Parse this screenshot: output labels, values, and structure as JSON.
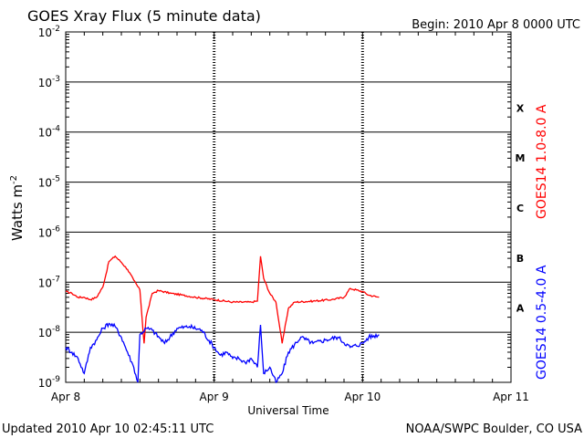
{
  "header": {
    "title": "GOES Xray Flux (5 minute data)",
    "begin_label": "Begin:  2010 Apr 8 0000 UTC"
  },
  "footer": {
    "updated": "Updated 2010 Apr 10 02:45:11 UTC",
    "credit": "NOAA/SWPC Boulder, CO USA"
  },
  "colors": {
    "long_channel": "#ff0000",
    "short_channel": "#0000ff",
    "axis": "#000000"
  },
  "chart_data": {
    "type": "line",
    "title": "GOES Xray Flux (5 minute data)",
    "xlabel": "Universal Time",
    "ylabel": "Watts m",
    "ylabel_superscript": "-2",
    "y_scale": "log",
    "ylim": [
      1e-09,
      0.01
    ],
    "xlim": [
      "2010-04-08 00:00",
      "2010-04-11 00:00"
    ],
    "x_ticks": [
      {
        "date": "2010-04-08",
        "label": "Apr 8"
      },
      {
        "date": "2010-04-09",
        "label": "Apr 9"
      },
      {
        "date": "2010-04-10",
        "label": "Apr 10"
      },
      {
        "date": "2010-04-11",
        "label": "Apr 11"
      }
    ],
    "y_ticks": [
      {
        "exp": -9,
        "base": "10",
        "sup": "-9"
      },
      {
        "exp": -8,
        "base": "10",
        "sup": "-8"
      },
      {
        "exp": -7,
        "base": "10",
        "sup": "-7"
      },
      {
        "exp": -6,
        "base": "10",
        "sup": "-6"
      },
      {
        "exp": -5,
        "base": "10",
        "sup": "-5"
      },
      {
        "exp": -4,
        "base": "10",
        "sup": "-4"
      },
      {
        "exp": -3,
        "base": "10",
        "sup": "-3"
      },
      {
        "exp": -2,
        "base": "10",
        "sup": "-2"
      }
    ],
    "flare_classes": [
      {
        "label": "A",
        "flux": 1e-08
      },
      {
        "label": "B",
        "flux": 1e-07
      },
      {
        "label": "C",
        "flux": 1e-06
      },
      {
        "label": "M",
        "flux": 1e-05
      },
      {
        "label": "X",
        "flux": 0.0001
      }
    ],
    "grid": "horizontal lines at each decade; dashed vertical lines at each day",
    "legend_position": "right, vertical",
    "series": [
      {
        "name": "GOES14 1.0-8.0 A",
        "color": "#ff0000",
        "points": [
          [
            "2010-04-08 00:00",
            6.5e-08
          ],
          [
            "2010-04-08 01:00",
            6e-08
          ],
          [
            "2010-04-08 02:00",
            5e-08
          ],
          [
            "2010-04-08 03:00",
            5e-08
          ],
          [
            "2010-04-08 04:00",
            4.5e-08
          ],
          [
            "2010-04-08 05:00",
            5e-08
          ],
          [
            "2010-04-08 06:00",
            8e-08
          ],
          [
            "2010-04-08 07:00",
            2.6e-07
          ],
          [
            "2010-04-08 08:00",
            3.3e-07
          ],
          [
            "2010-04-08 09:00",
            2.5e-07
          ],
          [
            "2010-04-08 10:00",
            1.8e-07
          ],
          [
            "2010-04-08 11:00",
            1.1e-07
          ],
          [
            "2010-04-08 12:00",
            7e-08
          ],
          [
            "2010-04-08 12:40",
            6e-09
          ],
          [
            "2010-04-08 13:00",
            2e-08
          ],
          [
            "2010-04-08 14:00",
            6e-08
          ],
          [
            "2010-04-08 15:00",
            6.8e-08
          ],
          [
            "2010-04-08 17:00",
            6e-08
          ],
          [
            "2010-04-08 19:00",
            5.5e-08
          ],
          [
            "2010-04-08 21:00",
            5e-08
          ],
          [
            "2010-04-09 00:00",
            4.5e-08
          ],
          [
            "2010-04-09 03:00",
            4e-08
          ],
          [
            "2010-04-09 06:00",
            4e-08
          ],
          [
            "2010-04-09 07:00",
            4.2e-08
          ],
          [
            "2010-04-09 07:30",
            3.3e-07
          ],
          [
            "2010-04-09 08:00",
            1.2e-07
          ],
          [
            "2010-04-09 09:00",
            6e-08
          ],
          [
            "2010-04-09 10:00",
            4e-08
          ],
          [
            "2010-04-09 11:00",
            6e-09
          ],
          [
            "2010-04-09 12:00",
            3e-08
          ],
          [
            "2010-04-09 13:00",
            4e-08
          ],
          [
            "2010-04-09 16:00",
            4.2e-08
          ],
          [
            "2010-04-09 19:00",
            4.5e-08
          ],
          [
            "2010-04-09 21:00",
            5e-08
          ],
          [
            "2010-04-09 22:00",
            7.5e-08
          ],
          [
            "2010-04-10 00:00",
            6.5e-08
          ],
          [
            "2010-04-10 01:00",
            5.5e-08
          ],
          [
            "2010-04-10 02:40",
            5e-08
          ]
        ]
      },
      {
        "name": "GOES14 0.5-4.0 A",
        "color": "#0000ff",
        "points": [
          [
            "2010-04-08 00:00",
            5e-09
          ],
          [
            "2010-04-08 01:00",
            4e-09
          ],
          [
            "2010-04-08 02:00",
            3e-09
          ],
          [
            "2010-04-08 03:00",
            1.5e-09
          ],
          [
            "2010-04-08 04:00",
            5e-09
          ],
          [
            "2010-04-08 05:00",
            7e-09
          ],
          [
            "2010-04-08 06:00",
            1.2e-08
          ],
          [
            "2010-04-08 07:00",
            1.5e-08
          ],
          [
            "2010-04-08 08:00",
            1.3e-08
          ],
          [
            "2010-04-08 09:00",
            8e-09
          ],
          [
            "2010-04-08 10:00",
            4e-09
          ],
          [
            "2010-04-08 11:00",
            2e-09
          ],
          [
            "2010-04-08 11:40",
            1e-09
          ],
          [
            "2010-04-08 12:00",
            9e-09
          ],
          [
            "2010-04-08 13:00",
            1.2e-08
          ],
          [
            "2010-04-08 14:00",
            1.1e-08
          ],
          [
            "2010-04-08 16:00",
            6e-09
          ],
          [
            "2010-04-08 18:00",
            1.2e-08
          ],
          [
            "2010-04-08 20:00",
            1.3e-08
          ],
          [
            "2010-04-08 22:00",
            1.1e-08
          ],
          [
            "2010-04-09 00:00",
            5e-09
          ],
          [
            "2010-04-09 01:00",
            3.5e-09
          ],
          [
            "2010-04-09 02:00",
            4e-09
          ],
          [
            "2010-04-09 03:00",
            3e-09
          ],
          [
            "2010-04-09 04:00",
            3e-09
          ],
          [
            "2010-04-09 05:00",
            2.5e-09
          ],
          [
            "2010-04-09 06:00",
            3e-09
          ],
          [
            "2010-04-09 07:00",
            2e-09
          ],
          [
            "2010-04-09 07:30",
            1.4e-08
          ],
          [
            "2010-04-09 08:00",
            1.5e-09
          ],
          [
            "2010-04-09 09:00",
            2e-09
          ],
          [
            "2010-04-09 10:00",
            1e-09
          ],
          [
            "2010-04-09 11:00",
            1.5e-09
          ],
          [
            "2010-04-09 12:00",
            4e-09
          ],
          [
            "2010-04-09 14:00",
            8e-09
          ],
          [
            "2010-04-09 16:00",
            6e-09
          ],
          [
            "2010-04-09 18:00",
            7e-09
          ],
          [
            "2010-04-09 20:00",
            8e-09
          ],
          [
            "2010-04-09 22:00",
            5e-09
          ],
          [
            "2010-04-10 00:00",
            6e-09
          ],
          [
            "2010-04-10 01:00",
            8e-09
          ],
          [
            "2010-04-10 02:40",
            9e-09
          ]
        ]
      }
    ]
  }
}
